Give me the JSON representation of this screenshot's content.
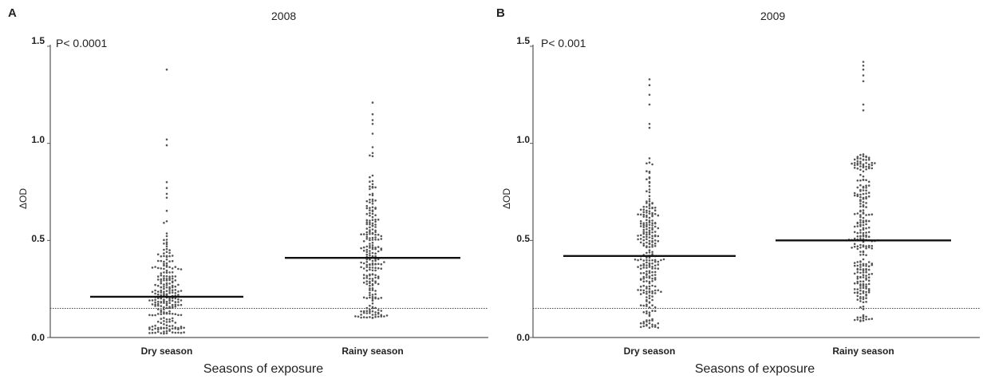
{
  "chart_data": [
    {
      "type": "scatter",
      "panel_label": "A",
      "title": "2008",
      "annotation": "P< 0.0001",
      "xlabel": "Seasons of exposure",
      "ylabel": "ΔOD",
      "categories": [
        "Dry season",
        "Rainy season"
      ],
      "ylim": [
        0,
        1.5
      ],
      "yticks": [
        0.0,
        0.5,
        1.0,
        1.5
      ],
      "ytick_labels": [
        "0.0",
        "0.5",
        "1.0",
        "1.5"
      ],
      "medians": [
        0.21,
        0.41
      ],
      "cutoff": 0.15,
      "series": [
        {
          "category": "Dry season",
          "n_points": 240,
          "range": [
            0.02,
            1.38
          ],
          "outliers": [
            1.38,
            1.02,
            0.99,
            0.8,
            0.77,
            0.74,
            0.72
          ]
        },
        {
          "category": "Rainy season",
          "n_points": 230,
          "range": [
            0.1,
            1.21
          ],
          "outliers": [
            1.21,
            1.15,
            1.12,
            1.1,
            1.05,
            0.98,
            0.95
          ]
        }
      ]
    },
    {
      "type": "scatter",
      "panel_label": "B",
      "title": "2009",
      "annotation": "P< 0.001",
      "xlabel": "Seasons of exposure",
      "ylabel": "ΔOD",
      "categories": [
        "Dry season",
        "Rainy season"
      ],
      "ylim": [
        0,
        1.5
      ],
      "yticks": [
        0.0,
        0.5,
        1.0,
        1.5
      ],
      "ytick_labels": [
        "0.0",
        "0.5",
        "1.0",
        "1.5"
      ],
      "medians": [
        0.42,
        0.5
      ],
      "cutoff": 0.15,
      "series": [
        {
          "category": "Dry season",
          "n_points": 260,
          "range": [
            0.05,
            1.33
          ],
          "outliers": [
            1.33,
            1.3,
            1.25,
            1.2,
            1.1,
            1.08
          ]
        },
        {
          "category": "Rainy season",
          "n_points": 270,
          "range": [
            0.08,
            1.42
          ],
          "outliers": [
            1.42,
            1.4,
            1.38,
            1.35,
            1.32,
            1.2,
            1.17
          ]
        }
      ]
    }
  ],
  "colors": {
    "dot": "#555555",
    "median": "#111111",
    "cutoff": "#444444",
    "axis": "#555555"
  }
}
